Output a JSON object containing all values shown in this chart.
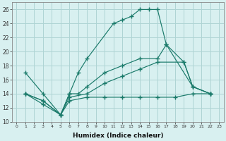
{
  "xlabel": "Humidex (Indice chaleur)",
  "bg_color": "#d8f0f0",
  "grid_color": "#aed4d4",
  "line_color": "#1a7a6a",
  "xlim": [
    -0.5,
    23.5
  ],
  "ylim": [
    10,
    27
  ],
  "xticks": [
    0,
    1,
    2,
    3,
    4,
    5,
    6,
    7,
    8,
    9,
    10,
    11,
    12,
    13,
    14,
    15,
    16,
    17,
    18,
    19,
    20,
    21,
    22,
    23
  ],
  "yticks": [
    10,
    12,
    14,
    16,
    18,
    20,
    22,
    24,
    26
  ],
  "series": [
    {
      "x": [
        1,
        3,
        5,
        6,
        7,
        8,
        11,
        12,
        13,
        14,
        15,
        16,
        17,
        20,
        22
      ],
      "y": [
        17,
        14,
        11,
        14,
        17,
        19,
        24,
        24.5,
        25,
        26,
        26,
        26,
        21,
        15,
        14
      ]
    },
    {
      "x": [
        1,
        3,
        5,
        6,
        7,
        8,
        10,
        12,
        14,
        16,
        17,
        19,
        20,
        22
      ],
      "y": [
        14,
        13,
        11,
        14,
        14,
        15,
        17,
        18,
        19,
        19,
        21,
        18.5,
        15,
        14
      ]
    },
    {
      "x": [
        1,
        3,
        5,
        6,
        8,
        10,
        12,
        14,
        16,
        19,
        20,
        22
      ],
      "y": [
        14,
        13,
        11,
        13.5,
        14,
        15.5,
        16.5,
        17.5,
        18.5,
        18.5,
        15,
        14
      ]
    },
    {
      "x": [
        1,
        3,
        5,
        6,
        8,
        10,
        12,
        14,
        16,
        18,
        20,
        22
      ],
      "y": [
        14,
        12.5,
        11,
        13,
        13.5,
        13.5,
        13.5,
        13.5,
        13.5,
        13.5,
        14,
        14
      ]
    }
  ]
}
